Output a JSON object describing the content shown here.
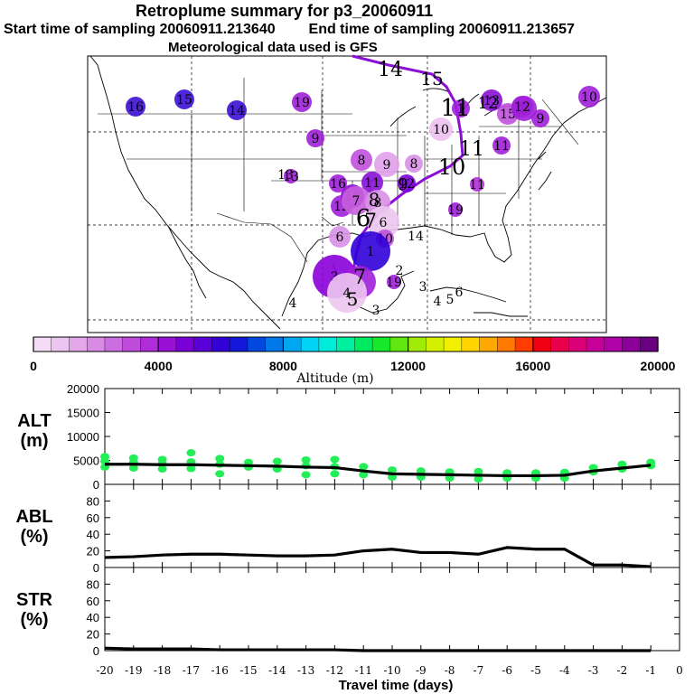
{
  "header": {
    "title": "Retroplume summary for p3_20060911",
    "start_label": "Start time of sampling 20060911.213640",
    "end_label": "End time of sampling 20060911.213657",
    "met_label": "Meteorological data used is GFS"
  },
  "colorbar": {
    "label": "Altitude (m)",
    "ticks": [
      "0",
      "4000",
      "8000",
      "12000",
      "16000",
      "20000"
    ],
    "colors": [
      "#f4dcf6",
      "#ecc6f0",
      "#e2a8ea",
      "#d88ae4",
      "#cc6ee0",
      "#c04cdc",
      "#b02cd8",
      "#9a10d6",
      "#7a00d8",
      "#5a00d8",
      "#3400d8",
      "#1418d8",
      "#0048e0",
      "#0078ea",
      "#00a8f2",
      "#00d4f6",
      "#00ecd8",
      "#00f0a0",
      "#00ea60",
      "#18e82c",
      "#60e810",
      "#a0ec08",
      "#d4f000",
      "#f2f000",
      "#ffd400",
      "#ffa800",
      "#ff7800",
      "#ff3c00",
      "#f00010",
      "#e8004c",
      "#dc0078",
      "#c8009a",
      "#b000a8",
      "#8a0098",
      "#6a0080"
    ]
  },
  "map": {
    "markers": [
      {
        "label": "16",
        "color": "#3d10d4"
      },
      {
        "label": "15",
        "color": "#3d10d4"
      },
      {
        "label": "14",
        "color": "#3d10d4"
      },
      {
        "label": "19",
        "color": "#a020d8"
      },
      {
        "label": "9",
        "color": "#a020d8"
      },
      {
        "label": "8",
        "color": "#c050dc"
      },
      {
        "label": "9",
        "color": "#e0a0ea"
      },
      {
        "label": "8",
        "color": "#d890e6"
      },
      {
        "label": "10",
        "color": "#ecc0f0"
      },
      {
        "label": "13",
        "color": "#a020d8"
      },
      {
        "label": "16",
        "color": "#a020d8"
      },
      {
        "label": "12",
        "color": "#a020d8"
      },
      {
        "label": "19",
        "color": "#a020d8"
      },
      {
        "label": "11",
        "color": "#8a10d6"
      },
      {
        "label": "11",
        "color": "#b030d8"
      },
      {
        "label": "12",
        "color": "#7a00d8"
      },
      {
        "label": "11",
        "color": "#9010d6"
      },
      {
        "label": "7",
        "color": "#c860dc"
      },
      {
        "label": "8",
        "color": "#d890e6"
      },
      {
        "label": "6",
        "color": "#ecc6f0"
      },
      {
        "label": "10",
        "color": "#c050dc"
      },
      {
        "label": "6",
        "color": "#d890e6"
      },
      {
        "label": "1",
        "color": "#3000d8"
      },
      {
        "label": "3",
        "color": "#8a00d8"
      },
      {
        "label": "5",
        "color": "#a020d8"
      },
      {
        "label": "4",
        "color": "#ecc6f0"
      },
      {
        "label": "19",
        "color": "#a020d8"
      },
      {
        "label": "13",
        "color": "#8a10d6"
      },
      {
        "label": "15",
        "color": "#c050dc"
      },
      {
        "label": "9",
        "color": "#a020d8"
      },
      {
        "label": "8",
        "color": "#a020d8"
      },
      {
        "label": "10",
        "color": "#a020d8"
      },
      {
        "label": "11",
        "color": "#a020d8"
      },
      {
        "label": "12",
        "color": "#a020d8"
      },
      {
        "label": "1",
        "color": "#a020d8"
      }
    ],
    "numbers": [
      "14",
      "15",
      "11",
      "12",
      "10",
      "11",
      "9",
      "8",
      "7",
      "6",
      "4",
      "3",
      "2",
      "3",
      "4",
      "5",
      "6",
      "7",
      "5",
      "14",
      "13"
    ]
  },
  "chart_data": [
    {
      "type": "line",
      "panel": "ALT (m)",
      "ylabel": "ALT\n(m)",
      "ylim": [
        0,
        20000
      ],
      "yticks": [
        "20000",
        "15000",
        "10000",
        "5000",
        "0"
      ],
      "x": [
        -20,
        -19,
        -18,
        -17,
        -16,
        -15,
        -14,
        -13,
        -12,
        -11,
        -10,
        -9,
        -8,
        -7,
        -6,
        -5,
        -4,
        -3,
        -2,
        -1
      ],
      "values": [
        4200,
        4200,
        4100,
        4100,
        4000,
        3900,
        3800,
        3600,
        3500,
        2800,
        2200,
        2100,
        2000,
        1900,
        1800,
        1800,
        1900,
        2800,
        3400,
        4000
      ],
      "scatter_points": [
        [
          -20,
          5800
        ],
        [
          -20,
          4800
        ],
        [
          -20,
          3600
        ],
        [
          -19,
          5500
        ],
        [
          -19,
          4600
        ],
        [
          -19,
          3400
        ],
        [
          -18,
          5200
        ],
        [
          -18,
          4300
        ],
        [
          -18,
          3200
        ],
        [
          -17,
          6600
        ],
        [
          -17,
          4700
        ],
        [
          -17,
          3300
        ],
        [
          -16,
          5400
        ],
        [
          -16,
          4200
        ],
        [
          -16,
          2200
        ],
        [
          -15,
          4600
        ],
        [
          -15,
          3600
        ],
        [
          -14,
          4800
        ],
        [
          -14,
          3200
        ],
        [
          -13,
          5100
        ],
        [
          -13,
          3900
        ],
        [
          -13,
          2000
        ],
        [
          -12,
          5200
        ],
        [
          -12,
          3700
        ],
        [
          -12,
          2200
        ],
        [
          -11,
          3700
        ],
        [
          -11,
          2000
        ],
        [
          -10,
          3000
        ],
        [
          -10,
          1500
        ],
        [
          -9,
          2800
        ],
        [
          -9,
          1500
        ],
        [
          -8,
          2600
        ],
        [
          -8,
          1300
        ],
        [
          -7,
          2700
        ],
        [
          -7,
          1100
        ],
        [
          -6,
          2400
        ],
        [
          -6,
          1300
        ],
        [
          -5,
          2400
        ],
        [
          -5,
          1300
        ],
        [
          -4,
          2500
        ],
        [
          -4,
          1300
        ],
        [
          -3,
          3500
        ],
        [
          -3,
          2600
        ],
        [
          -2,
          4200
        ],
        [
          -2,
          3200
        ],
        [
          -1,
          4600
        ],
        [
          -1,
          3900
        ]
      ]
    },
    {
      "type": "line",
      "panel": "ABL (%)",
      "ylabel": "ABL\n(%)",
      "ylim": [
        0,
        100
      ],
      "yticks": [
        "80",
        "60",
        "40",
        "20",
        "0"
      ],
      "x": [
        -20,
        -19,
        -18,
        -17,
        -16,
        -15,
        -14,
        -13,
        -12,
        -11,
        -10,
        -9,
        -8,
        -7,
        -6,
        -5,
        -4,
        -3,
        -2,
        -1
      ],
      "values": [
        12,
        13,
        15,
        16,
        16,
        15,
        14,
        14,
        15,
        20,
        22,
        18,
        18,
        16,
        24,
        22,
        22,
        3,
        3,
        1
      ]
    },
    {
      "type": "line",
      "panel": "STR (%)",
      "ylabel": "STR\n(%)",
      "ylim": [
        0,
        100
      ],
      "yticks": [
        "80",
        "60",
        "40",
        "20",
        "0"
      ],
      "x": [
        -20,
        -19,
        -18,
        -17,
        -16,
        -15,
        -14,
        -13,
        -12,
        -11,
        -10,
        -9,
        -8,
        -7,
        -6,
        -5,
        -4,
        -3,
        -2,
        -1
      ],
      "values": [
        3,
        2,
        2,
        2,
        1,
        1,
        1,
        1,
        1,
        0,
        0,
        0,
        0,
        0,
        0,
        0,
        0,
        0,
        0,
        0
      ]
    }
  ],
  "xaxis": {
    "label": "Travel time (days)",
    "ticks": [
      "-20",
      "-19",
      "-18",
      "-17",
      "-16",
      "-15",
      "-14",
      "-13",
      "-12",
      "-11",
      "-10",
      "-9",
      "-8",
      "-7",
      "-6",
      "-5",
      "-4",
      "-3",
      "-2",
      "-1",
      "0"
    ]
  },
  "colors": {
    "line": "#000000",
    "scatter": "#22ee55",
    "path": "#8a10d6"
  }
}
